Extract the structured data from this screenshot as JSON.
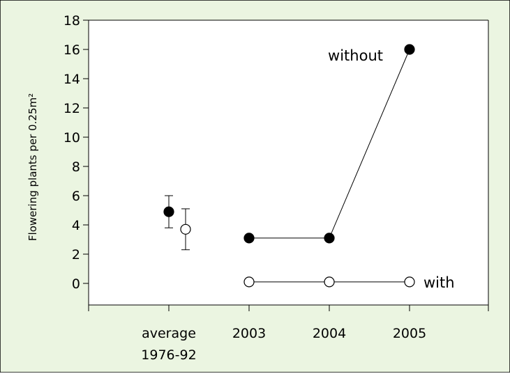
{
  "colors": {
    "page_background": "#ebf5e1",
    "plot_background": "#ffffff",
    "border": "#000000",
    "filled_marker": "#000000",
    "open_marker_fill": "#ffffff"
  },
  "chart_data": {
    "type": "scatter",
    "title": "",
    "xlabel": "",
    "ylabel": "Flowering plants per 0.25m²",
    "ylim": [
      -1.5,
      18
    ],
    "yticks": [
      0,
      2,
      4,
      6,
      8,
      10,
      12,
      14,
      16,
      18
    ],
    "categories": [
      {
        "label": "average",
        "label2": "1976-92"
      },
      {
        "label": "2003"
      },
      {
        "label": "2004"
      },
      {
        "label": "2005"
      }
    ],
    "grid": false,
    "series": [
      {
        "name": "without",
        "marker": "filled",
        "average": {
          "value": 4.9,
          "err_low": 3.8,
          "err_high": 6.0
        },
        "values": [
          3.1,
          3.1,
          16.0
        ]
      },
      {
        "name": "with",
        "marker": "open",
        "average": {
          "value": 3.7,
          "err_low": 2.3,
          "err_high": 5.1
        },
        "values": [
          0.1,
          0.1,
          0.1
        ]
      }
    ]
  }
}
